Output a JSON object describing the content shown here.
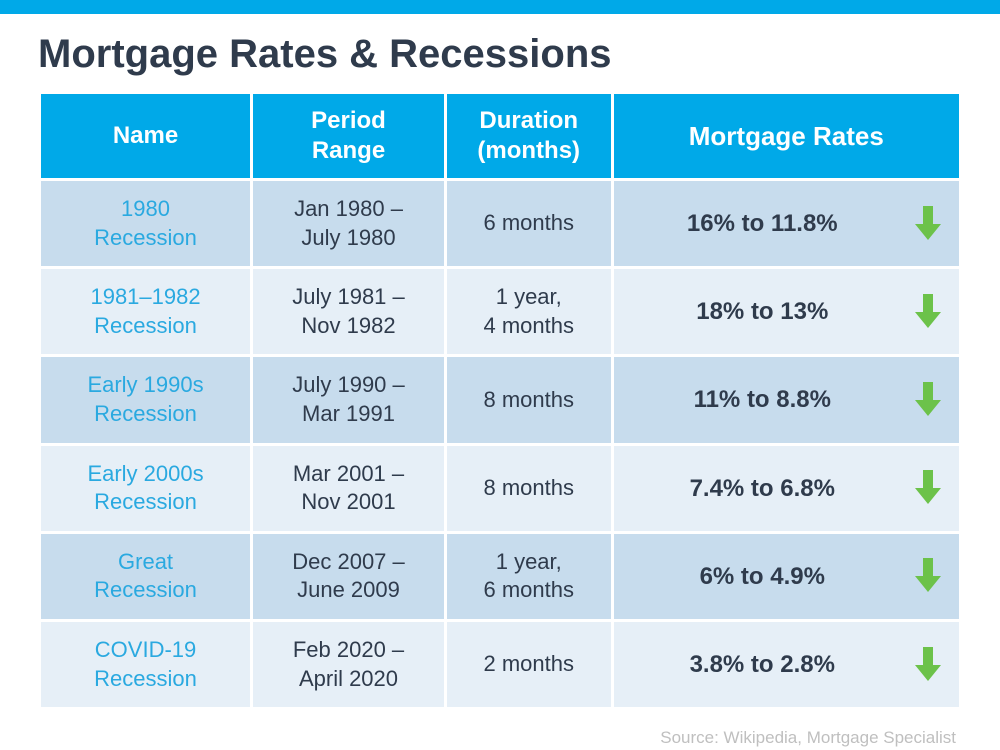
{
  "title": "Mortgage Rates & Recessions",
  "title_color": "#2f3b4c",
  "title_fontsize": 40,
  "topbar_color": "#00a9e8",
  "source": "Source: Wikipedia, Mortgage Specialist",
  "source_color": "#bfbfbf",
  "source_fontsize": 17,
  "table": {
    "header_bg": "#00a9e8",
    "header_color": "#ffffff",
    "header_fontsize": 24,
    "rates_header_fontsize": 26,
    "row_bg_odd": "#c7dced",
    "row_bg_even": "#e6eff7",
    "name_color": "#2aa9e0",
    "text_color": "#2f3b4c",
    "cell_fontsize": 22,
    "rates_fontsize": 24,
    "arrow_color": "#6cc24a",
    "columns": [
      "Name",
      "Period\nRange",
      "Duration\n(months)",
      "Mortgage Rates"
    ],
    "rows": [
      {
        "name": "1980\nRecession",
        "period": "Jan 1980 –\nJuly 1980",
        "duration": "6 months",
        "rates": "16% to 11.8%",
        "trend": "down"
      },
      {
        "name": "1981–1982\nRecession",
        "period": "July 1981 –\nNov 1982",
        "duration": "1 year,\n4 months",
        "rates": "18% to 13%",
        "trend": "down"
      },
      {
        "name": "Early 1990s\nRecession",
        "period": "July 1990 –\nMar 1991",
        "duration": "8 months",
        "rates": "11% to 8.8%",
        "trend": "down"
      },
      {
        "name": "Early 2000s\nRecession",
        "period": "Mar 2001 –\nNov 2001",
        "duration": "8 months",
        "rates": "7.4% to 6.8%",
        "trend": "down"
      },
      {
        "name": "Great\nRecession",
        "period": "Dec 2007 –\nJune 2009",
        "duration": "1 year,\n6 months",
        "rates": "6% to 4.9%",
        "trend": "down"
      },
      {
        "name": "COVID-19\nRecession",
        "period": "Feb 2020 –\nApril 2020",
        "duration": "2 months",
        "rates": "3.8% to 2.8%",
        "trend": "down"
      }
    ]
  }
}
